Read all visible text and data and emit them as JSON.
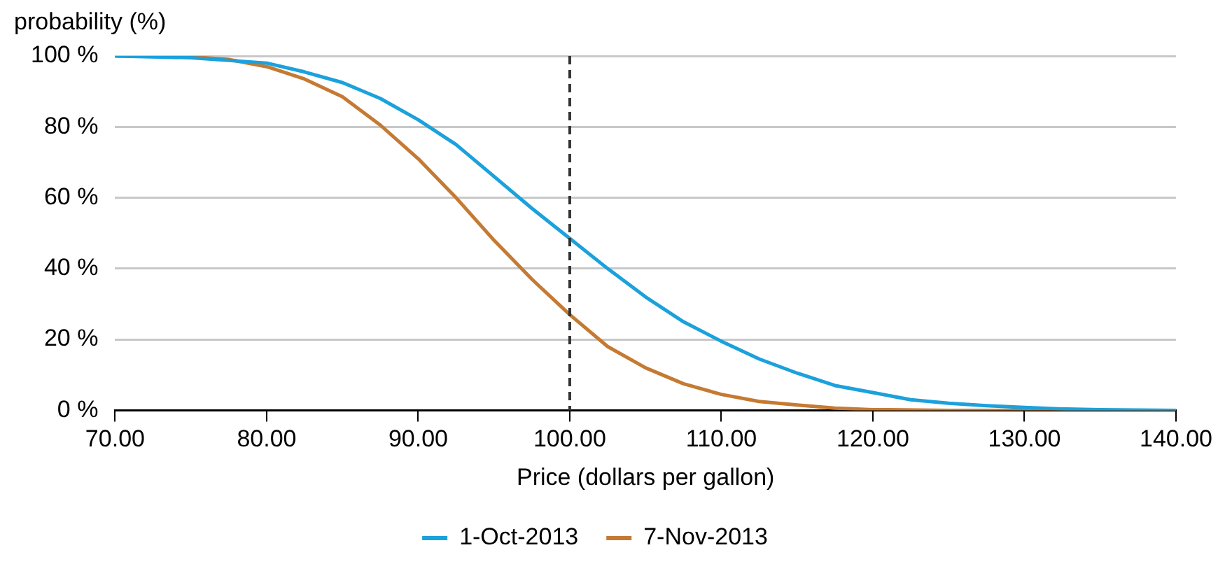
{
  "chart_data": {
    "type": "line",
    "ylabel": "probability (%)",
    "xlabel": "Price (dollars per gallon)",
    "xlim": [
      70,
      140
    ],
    "xticks": [
      {
        "value": 70,
        "label": "70.00"
      },
      {
        "value": 80,
        "label": "80.00"
      },
      {
        "value": 90,
        "label": "90.00"
      },
      {
        "value": 100,
        "label": "100.00"
      },
      {
        "value": 110,
        "label": "110.00"
      },
      {
        "value": 120,
        "label": "120.00"
      },
      {
        "value": 130,
        "label": "130.00"
      },
      {
        "value": 140,
        "label": "140.00"
      }
    ],
    "ylim": [
      0,
      100
    ],
    "yticks": [
      {
        "value": 0,
        "label": "0 %"
      },
      {
        "value": 20,
        "label": "20 %"
      },
      {
        "value": 40,
        "label": "40 %"
      },
      {
        "value": 60,
        "label": "60 %"
      },
      {
        "value": 80,
        "label": "80 %"
      },
      {
        "value": 100,
        "label": "100 %"
      }
    ],
    "grid": "y",
    "legend": "bottom",
    "marker": "none",
    "line_style": "solid",
    "ref_lines": [
      {
        "axis": "x",
        "value": 100,
        "color": "#333333",
        "line_style": "dashed"
      }
    ],
    "series": [
      {
        "name": "1-Oct-2013",
        "color": "#1ba1dc",
        "x": [
          70,
          75,
          80,
          82.5,
          85,
          87.5,
          90,
          92.5,
          95,
          97.5,
          100,
          102.5,
          105,
          107.5,
          110,
          112.5,
          115,
          117.5,
          120,
          122.5,
          125,
          127.5,
          130,
          132.5,
          135,
          140
        ],
        "values": [
          100,
          99.5,
          98,
          95.5,
          92.5,
          88,
          82,
          75,
          66,
          57,
          48.5,
          40,
          32,
          25,
          19.5,
          14.5,
          10.5,
          7,
          5,
          3,
          2,
          1.3,
          0.8,
          0.4,
          0.2,
          0
        ]
      },
      {
        "name": "7-Nov-2013",
        "color": "#c57a33",
        "x": [
          70,
          75,
          77.5,
          80,
          82.5,
          85,
          87.5,
          90,
          92.5,
          95,
          97.5,
          100,
          102.5,
          105,
          107.5,
          110,
          112.5,
          115,
          117.5,
          120,
          125,
          140
        ],
        "values": [
          100,
          99.8,
          99,
          97,
          93.5,
          88.5,
          80.5,
          71,
          60,
          48,
          37,
          27,
          18,
          12,
          7.5,
          4.5,
          2.5,
          1.5,
          0.6,
          0.2,
          0,
          0
        ]
      }
    ]
  }
}
